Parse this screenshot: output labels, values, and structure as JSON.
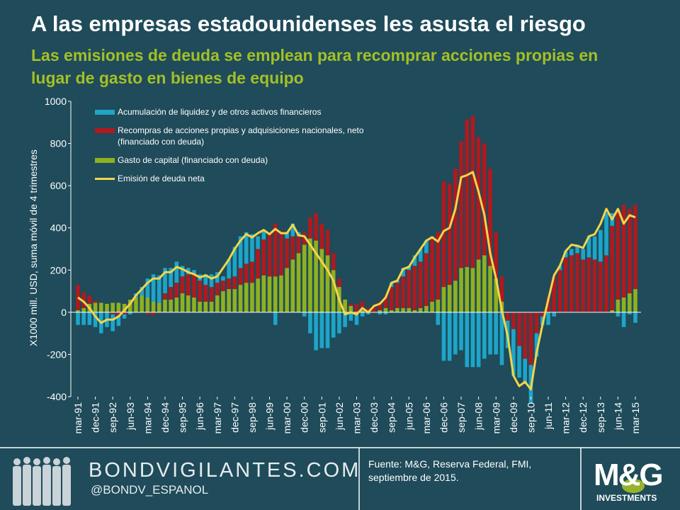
{
  "chart_data": {
    "type": "bar",
    "title": "A las empresas estadounidenses les asusta el riesgo",
    "subtitle": "Las emisiones de deuda se emplean para recomprar acciones propias en lugar de gasto en bienes de equipo",
    "y_label": "X1000 mill. USD, suma móvil de 4 trimestres",
    "categories": [
      "mar-91",
      null,
      null,
      "dec-91",
      null,
      null,
      "sep-92",
      null,
      null,
      "jun-93",
      null,
      null,
      "mar-94",
      null,
      null,
      "dec-94",
      null,
      null,
      "sep-95",
      null,
      null,
      "jun-96",
      null,
      null,
      "mar-97",
      null,
      null,
      "dec-97",
      null,
      null,
      "sep-98",
      null,
      null,
      "jun-99",
      null,
      null,
      "mar-00",
      null,
      null,
      "dec-00",
      null,
      null,
      "sep-01",
      null,
      null,
      "jun-02",
      null,
      null,
      "mar-03",
      null,
      null,
      "dec-03",
      null,
      null,
      "sep-04",
      null,
      null,
      "jun-05",
      null,
      null,
      "mar-06",
      null,
      null,
      "dec-06",
      null,
      null,
      "sep-07",
      null,
      null,
      "jun-08",
      null,
      null,
      "mar-09",
      null,
      null,
      "dec-09",
      null,
      null,
      "sep-10",
      null,
      null,
      "jun-11",
      null,
      null,
      "mar-12",
      null,
      null,
      "dec-12",
      null,
      null,
      "sep-13",
      null,
      null,
      "jun-14",
      null,
      null,
      "mar-15"
    ],
    "series": [
      {
        "name": "Acumulación de liquidez y de otros activos financieros",
        "color": "#1ea5c9",
        "type": "bar",
        "values": [
          -60,
          -60,
          -60,
          -70,
          -100,
          -70,
          -80,
          -50,
          -20,
          -10,
          20,
          40,
          90,
          130,
          130,
          120,
          90,
          100,
          50,
          30,
          20,
          30,
          50,
          60,
          50,
          20,
          90,
          140,
          150,
          150,
          130,
          60,
          40,
          0,
          -60,
          0,
          30,
          60,
          20,
          -20,
          -100,
          -180,
          -170,
          -170,
          -120,
          -100,
          -70,
          -40,
          -60,
          -20,
          -10,
          0,
          -10,
          -10,
          20,
          10,
          40,
          20,
          50,
          60,
          60,
          10,
          -60,
          -230,
          -230,
          -200,
          -180,
          -260,
          -260,
          -260,
          -220,
          -200,
          -200,
          -250,
          -130,
          -220,
          -150,
          -120,
          -180,
          -110,
          -40,
          -60,
          -20,
          20,
          30,
          30,
          40,
          50,
          100,
          110,
          150,
          200,
          60,
          -20,
          -70,
          -10,
          -50
        ]
      },
      {
        "name": "Recompras de acciones propias y adquisiciones nacionales, neto (financiado con deuda)",
        "color": "#b0191e",
        "type": "bar",
        "values": [
          120,
          75,
          40,
          10,
          0,
          0,
          -10,
          -15,
          -10,
          0,
          0,
          0,
          -10,
          -15,
          0,
          30,
          60,
          70,
          80,
          100,
          110,
          100,
          80,
          70,
          60,
          50,
          50,
          60,
          80,
          90,
          100,
          140,
          170,
          200,
          250,
          210,
          140,
          110,
          80,
          60,
          100,
          130,
          120,
          120,
          80,
          40,
          0,
          10,
          40,
          40,
          20,
          30,
          40,
          60,
          110,
          120,
          150,
          180,
          210,
          220,
          250,
          300,
          320,
          500,
          480,
          530,
          600,
          700,
          720,
          580,
          530,
          460,
          220,
          120,
          -40,
          -80,
          -160,
          -220,
          -250,
          -100,
          -20,
          70,
          170,
          200,
          260,
          270,
          280,
          250,
          260,
          250,
          240,
          270,
          400,
          420,
          440,
          400,
          400
        ]
      },
      {
        "name": "Gasto de capital (financiado con deuda)",
        "color": "#8fb021",
        "type": "bar",
        "values": [
          10,
          20,
          40,
          45,
          45,
          40,
          45,
          45,
          40,
          60,
          70,
          80,
          70,
          50,
          45,
          60,
          60,
          70,
          90,
          80,
          70,
          50,
          50,
          50,
          80,
          100,
          110,
          110,
          130,
          140,
          140,
          160,
          175,
          170,
          170,
          175,
          210,
          250,
          280,
          320,
          350,
          340,
          300,
          270,
          200,
          120,
          60,
          30,
          0,
          10,
          0,
          0,
          10,
          20,
          10,
          20,
          20,
          20,
          10,
          20,
          30,
          50,
          60,
          120,
          130,
          150,
          210,
          215,
          210,
          250,
          270,
          220,
          160,
          50,
          0,
          0,
          0,
          0,
          0,
          0,
          0,
          0,
          0,
          0,
          0,
          0,
          0,
          0,
          0,
          0,
          0,
          0,
          10,
          60,
          70,
          90,
          110
        ]
      },
      {
        "name": "Emisión de deuda neta",
        "color": "#f5d547",
        "type": "line",
        "values": [
          70,
          50,
          20,
          -20,
          -50,
          -35,
          -35,
          -20,
          10,
          40,
          80,
          110,
          140,
          160,
          160,
          190,
          190,
          215,
          205,
          190,
          180,
          165,
          175,
          160,
          170,
          210,
          250,
          300,
          340,
          370,
          355,
          375,
          390,
          370,
          395,
          375,
          375,
          415,
          365,
          360,
          320,
          280,
          240,
          200,
          150,
          60,
          -10,
          0,
          -10,
          20,
          0,
          30,
          40,
          70,
          140,
          150,
          205,
          215,
          260,
          300,
          340,
          355,
          335,
          385,
          400,
          490,
          640,
          650,
          665,
          570,
          460,
          280,
          160,
          10,
          -110,
          -300,
          -350,
          -330,
          -365,
          -190,
          -60,
          60,
          175,
          220,
          290,
          320,
          315,
          305,
          360,
          370,
          420,
          490,
          440,
          490,
          420,
          460,
          450
        ]
      }
    ],
    "ylim": [
      -400,
      1000
    ],
    "yticks": [
      -400,
      -200,
      0,
      200,
      400,
      600,
      800,
      1000
    ]
  },
  "footer": {
    "brand": "BONDVIGILANTES.COM",
    "twitter": "@BONDV_ESPANOL",
    "source": "Fuente: M&G, Reserva Federal, FMI, septiembre de 2015.",
    "logo": "M&G",
    "logo_sub": "INVESTMENTS"
  }
}
